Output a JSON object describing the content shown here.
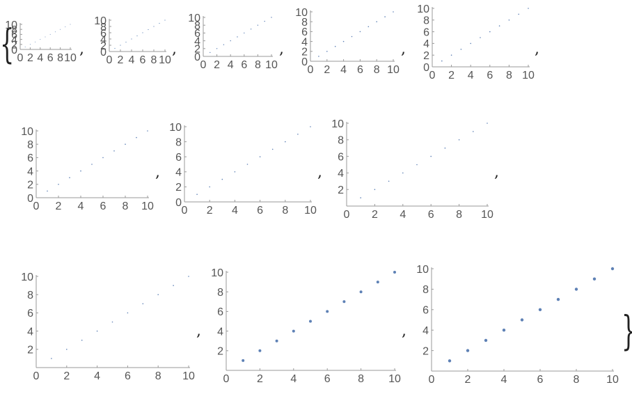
{
  "brackets": {
    "open": "{",
    "close": "}"
  },
  "separator": ",",
  "colors": {
    "point": "#5e81b5",
    "axis": "#999999",
    "tick_text": "#555555"
  },
  "chart_data": [
    {
      "type": "scatter",
      "x": [
        1,
        2,
        3,
        4,
        5,
        6,
        7,
        8,
        9,
        10
      ],
      "y": [
        1,
        2,
        3,
        4,
        5,
        6,
        7,
        8,
        9,
        10
      ],
      "xlim": [
        0,
        10
      ],
      "ylim": [
        0,
        10
      ],
      "x_ticks": [
        "0",
        "2",
        "4",
        "6",
        "8",
        "10"
      ],
      "y_ticks": [
        "0",
        "2",
        "4",
        "6",
        "8",
        "10"
      ],
      "title": "",
      "xlabel": "",
      "ylabel": ""
    },
    {
      "type": "scatter",
      "x": [
        1,
        2,
        3,
        4,
        5,
        6,
        7,
        8,
        9,
        10
      ],
      "y": [
        1,
        2,
        3,
        4,
        5,
        6,
        7,
        8,
        9,
        10
      ],
      "xlim": [
        0,
        10
      ],
      "ylim": [
        0,
        10
      ],
      "x_ticks": [
        "0",
        "2",
        "4",
        "6",
        "8",
        "10"
      ],
      "y_ticks": [
        "0",
        "2",
        "4",
        "6",
        "8",
        "10"
      ],
      "title": "",
      "xlabel": "",
      "ylabel": ""
    },
    {
      "type": "scatter",
      "x": [
        1,
        2,
        3,
        4,
        5,
        6,
        7,
        8,
        9,
        10
      ],
      "y": [
        1,
        2,
        3,
        4,
        5,
        6,
        7,
        8,
        9,
        10
      ],
      "xlim": [
        0,
        10
      ],
      "ylim": [
        0,
        10
      ],
      "x_ticks": [
        "0",
        "2",
        "4",
        "6",
        "8",
        "10"
      ],
      "y_ticks": [
        "0",
        "2",
        "4",
        "6",
        "8",
        "10"
      ],
      "title": "",
      "xlabel": "",
      "ylabel": ""
    },
    {
      "type": "scatter",
      "x": [
        1,
        2,
        3,
        4,
        5,
        6,
        7,
        8,
        9,
        10
      ],
      "y": [
        1,
        2,
        3,
        4,
        5,
        6,
        7,
        8,
        9,
        10
      ],
      "xlim": [
        0,
        10
      ],
      "ylim": [
        0,
        10
      ],
      "x_ticks": [
        "0",
        "2",
        "4",
        "6",
        "8",
        "10"
      ],
      "y_ticks": [
        "0",
        "2",
        "4",
        "6",
        "8",
        "10"
      ],
      "title": "",
      "xlabel": "",
      "ylabel": ""
    },
    {
      "type": "scatter",
      "x": [
        1,
        2,
        3,
        4,
        5,
        6,
        7,
        8,
        9,
        10
      ],
      "y": [
        1,
        2,
        3,
        4,
        5,
        6,
        7,
        8,
        9,
        10
      ],
      "xlim": [
        0,
        10
      ],
      "ylim": [
        0,
        10
      ],
      "x_ticks": [
        "0",
        "2",
        "4",
        "6",
        "8",
        "10"
      ],
      "y_ticks": [
        "0",
        "2",
        "4",
        "6",
        "8",
        "10"
      ],
      "title": "",
      "xlabel": "",
      "ylabel": ""
    },
    {
      "type": "scatter",
      "x": [
        1,
        2,
        3,
        4,
        5,
        6,
        7,
        8,
        9,
        10
      ],
      "y": [
        1,
        2,
        3,
        4,
        5,
        6,
        7,
        8,
        9,
        10
      ],
      "xlim": [
        0,
        10
      ],
      "ylim": [
        0,
        10
      ],
      "x_ticks": [
        "0",
        "2",
        "4",
        "6",
        "8",
        "10"
      ],
      "y_ticks": [
        "0",
        "2",
        "4",
        "6",
        "8",
        "10"
      ],
      "title": "",
      "xlabel": "",
      "ylabel": ""
    },
    {
      "type": "scatter",
      "x": [
        1,
        2,
        3,
        4,
        5,
        6,
        7,
        8,
        9,
        10
      ],
      "y": [
        1,
        2,
        3,
        4,
        5,
        6,
        7,
        8,
        9,
        10
      ],
      "xlim": [
        0,
        10
      ],
      "ylim": [
        0,
        10
      ],
      "x_ticks": [
        "0",
        "2",
        "4",
        "6",
        "8",
        "10"
      ],
      "y_ticks": [
        "0",
        "2",
        "4",
        "6",
        "8",
        "10"
      ],
      "title": "",
      "xlabel": "",
      "ylabel": ""
    },
    {
      "type": "scatter",
      "x": [
        1,
        2,
        3,
        4,
        5,
        6,
        7,
        8,
        9,
        10
      ],
      "y": [
        1,
        2,
        3,
        4,
        5,
        6,
        7,
        8,
        9,
        10
      ],
      "xlim": [
        0,
        10
      ],
      "ylim": [
        0,
        10
      ],
      "x_ticks": [
        "0",
        "2",
        "4",
        "6",
        "8",
        "10"
      ],
      "y_ticks": [
        "2",
        "4",
        "6",
        "8",
        "10"
      ],
      "title": "",
      "xlabel": "",
      "ylabel": ""
    },
    {
      "type": "scatter",
      "x": [
        1,
        2,
        3,
        4,
        5,
        6,
        7,
        8,
        9,
        10
      ],
      "y": [
        1,
        2,
        3,
        4,
        5,
        6,
        7,
        8,
        9,
        10
      ],
      "xlim": [
        0,
        10
      ],
      "ylim": [
        0,
        10
      ],
      "x_ticks": [
        "0",
        "2",
        "4",
        "6",
        "8",
        "10"
      ],
      "y_ticks": [
        "2",
        "4",
        "6",
        "8",
        "10"
      ],
      "title": "",
      "xlabel": "",
      "ylabel": ""
    },
    {
      "type": "scatter",
      "x": [
        1,
        2,
        3,
        4,
        5,
        6,
        7,
        8,
        9,
        10
      ],
      "y": [
        1,
        2,
        3,
        4,
        5,
        6,
        7,
        8,
        9,
        10
      ],
      "xlim": [
        0,
        10
      ],
      "ylim": [
        0,
        10
      ],
      "x_ticks": [
        "0",
        "2",
        "4",
        "6",
        "8",
        "10"
      ],
      "y_ticks": [
        "2",
        "4",
        "6",
        "8",
        "10"
      ],
      "title": "",
      "xlabel": "",
      "ylabel": ""
    },
    {
      "type": "scatter",
      "x": [
        1,
        2,
        3,
        4,
        5,
        6,
        7,
        8,
        9,
        10
      ],
      "y": [
        1,
        2,
        3,
        4,
        5,
        6,
        7,
        8,
        9,
        10
      ],
      "xlim": [
        0,
        10
      ],
      "ylim": [
        0,
        10
      ],
      "x_ticks": [
        "0",
        "2",
        "4",
        "6",
        "8",
        "10"
      ],
      "y_ticks": [
        "2",
        "4",
        "6",
        "8",
        "10"
      ],
      "title": "",
      "xlabel": "",
      "ylabel": ""
    }
  ]
}
